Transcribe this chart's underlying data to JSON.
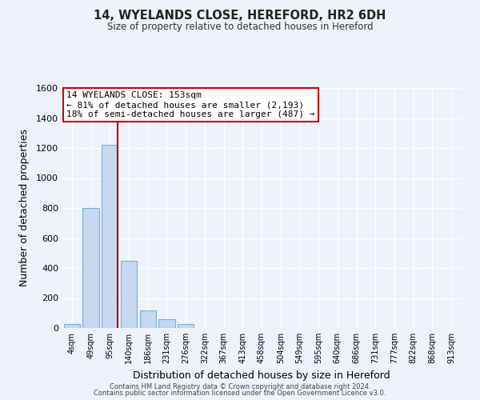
{
  "title": "14, WYELANDS CLOSE, HEREFORD, HR2 6DH",
  "subtitle": "Size of property relative to detached houses in Hereford",
  "xlabel": "Distribution of detached houses by size in Hereford",
  "ylabel": "Number of detached properties",
  "bar_labels": [
    "4sqm",
    "49sqm",
    "95sqm",
    "140sqm",
    "186sqm",
    "231sqm",
    "276sqm",
    "322sqm",
    "367sqm",
    "413sqm",
    "458sqm",
    "504sqm",
    "549sqm",
    "595sqm",
    "640sqm",
    "686sqm",
    "731sqm",
    "777sqm",
    "822sqm",
    "868sqm",
    "913sqm"
  ],
  "bar_values": [
    25,
    800,
    1220,
    450,
    120,
    60,
    25,
    0,
    0,
    0,
    0,
    0,
    0,
    0,
    0,
    0,
    0,
    0,
    0,
    0,
    0
  ],
  "bar_color": "#c5d8f0",
  "bar_edge_color": "#7aadd4",
  "property_line_color": "#aa0000",
  "ylim": [
    0,
    1600
  ],
  "yticks": [
    0,
    200,
    400,
    600,
    800,
    1000,
    1200,
    1400,
    1600
  ],
  "annotation_title": "14 WYELANDS CLOSE: 153sqm",
  "annotation_line1": "← 81% of detached houses are smaller (2,193)",
  "annotation_line2": "18% of semi-detached houses are larger (487) →",
  "annotation_box_color": "#ffffff",
  "annotation_box_edge_color": "#cc0000",
  "footer_line1": "Contains HM Land Registry data © Crown copyright and database right 2024.",
  "footer_line2": "Contains public sector information licensed under the Open Government Licence v3.0.",
  "background_color": "#eef2fa",
  "grid_color": "#ffffff"
}
